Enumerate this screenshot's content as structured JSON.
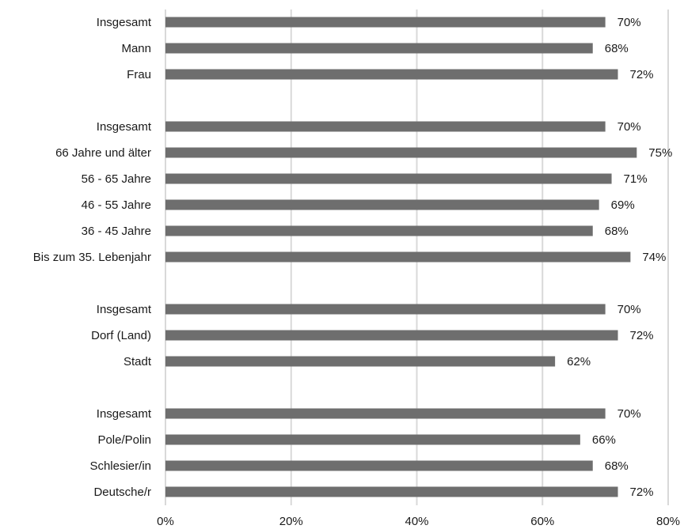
{
  "chart_data": {
    "type": "bar",
    "orientation": "horizontal",
    "title": "",
    "xlabel": "",
    "ylabel": "",
    "xlim": [
      0,
      80
    ],
    "x_ticks": [
      "0%",
      "20%",
      "40%",
      "60%",
      "80%"
    ],
    "x_tick_values": [
      0,
      20,
      40,
      60,
      80
    ],
    "grid": "vertical",
    "bar_color": "#6e6e6e",
    "groups": [
      {
        "rows": [
          {
            "label": "Insgesamt",
            "value": 70,
            "value_label": "70%"
          },
          {
            "label": "Mann",
            "value": 68,
            "value_label": "68%"
          },
          {
            "label": "Frau",
            "value": 72,
            "value_label": "72%"
          }
        ]
      },
      {
        "rows": [
          {
            "label": "Insgesamt",
            "value": 70,
            "value_label": "70%"
          },
          {
            "label": "66 Jahre und älter",
            "value": 75,
            "value_label": "75%"
          },
          {
            "label": "56 - 65 Jahre",
            "value": 71,
            "value_label": "71%"
          },
          {
            "label": "46 - 55 Jahre",
            "value": 69,
            "value_label": "69%"
          },
          {
            "label": "36 - 45 Jahre",
            "value": 68,
            "value_label": "68%"
          },
          {
            "label": "Bis zum 35. Lebenjahr",
            "value": 74,
            "value_label": "74%"
          }
        ]
      },
      {
        "rows": [
          {
            "label": "Insgesamt",
            "value": 70,
            "value_label": "70%"
          },
          {
            "label": "Dorf (Land)",
            "value": 72,
            "value_label": "72%"
          },
          {
            "label": "Stadt",
            "value": 62,
            "value_label": "62%"
          }
        ]
      },
      {
        "rows": [
          {
            "label": "Insgesamt",
            "value": 70,
            "value_label": "70%"
          },
          {
            "label": "Pole/Polin",
            "value": 66,
            "value_label": "66%"
          },
          {
            "label": "Schlesier/in",
            "value": 68,
            "value_label": "68%"
          },
          {
            "label": "Deutsche/r",
            "value": 72,
            "value_label": "72%"
          }
        ]
      }
    ]
  }
}
